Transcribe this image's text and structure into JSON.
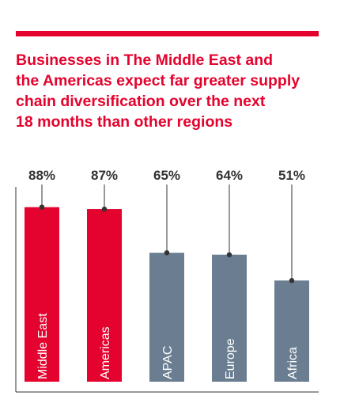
{
  "title": "Businesses in The Middle East and\nthe Americas expect far greater supply\nchain diversification over the next\n18 months than other regions",
  "colors": {
    "accent": "#e4032e",
    "muted": "#6a7d91",
    "text": "#333333"
  },
  "chart_data": {
    "type": "bar",
    "categories": [
      "Middle East",
      "Americas",
      "APAC",
      "Europe",
      "Africa"
    ],
    "values": [
      88,
      87,
      65,
      64,
      51
    ],
    "labels": [
      "88%",
      "87%",
      "65%",
      "64%",
      "51%"
    ],
    "highlight": [
      true,
      true,
      false,
      false,
      false
    ],
    "title": "",
    "xlabel": "",
    "ylabel": "",
    "ylim": [
      0,
      100
    ]
  }
}
